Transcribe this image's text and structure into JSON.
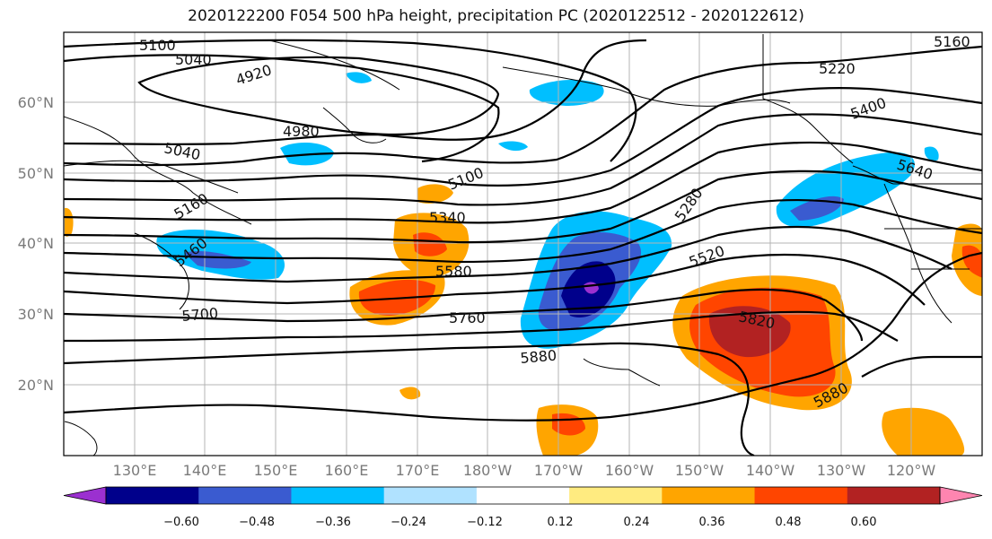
{
  "title": "2020122200 F054 500 hPa height, precipitation PC (2020122512 - 2020122612)",
  "lat_labels": [
    "60°N",
    "50°N",
    "40°N",
    "30°N",
    "20°N"
  ],
  "lon_labels": [
    "130°E",
    "140°E",
    "150°E",
    "160°E",
    "170°E",
    "180°W",
    "170°W",
    "160°W",
    "150°W",
    "140°W",
    "130°W",
    "120°W"
  ],
  "contour_labels": [
    "5100",
    "5040",
    "4920",
    "4980",
    "5040",
    "5160",
    "5460",
    "5220",
    "5400",
    "5640",
    "5100",
    "5340",
    "5280",
    "5520",
    "5580",
    "5700",
    "5760",
    "5820",
    "5880",
    "5880",
    "5160"
  ],
  "colorbar": {
    "colors": [
      "#9b30d0",
      "#00008b",
      "#3a5bd0",
      "#00bfff",
      "#b0e2ff",
      "#ffffff",
      "#ffeb80",
      "#ffa500",
      "#ff4500",
      "#b22222",
      "#ff85b0"
    ],
    "ticks": [
      "−0.60",
      "−0.48",
      "−0.36",
      "−0.24",
      "−0.12",
      "0.12",
      "0.24",
      "0.36",
      "0.48",
      "0.60"
    ]
  }
}
